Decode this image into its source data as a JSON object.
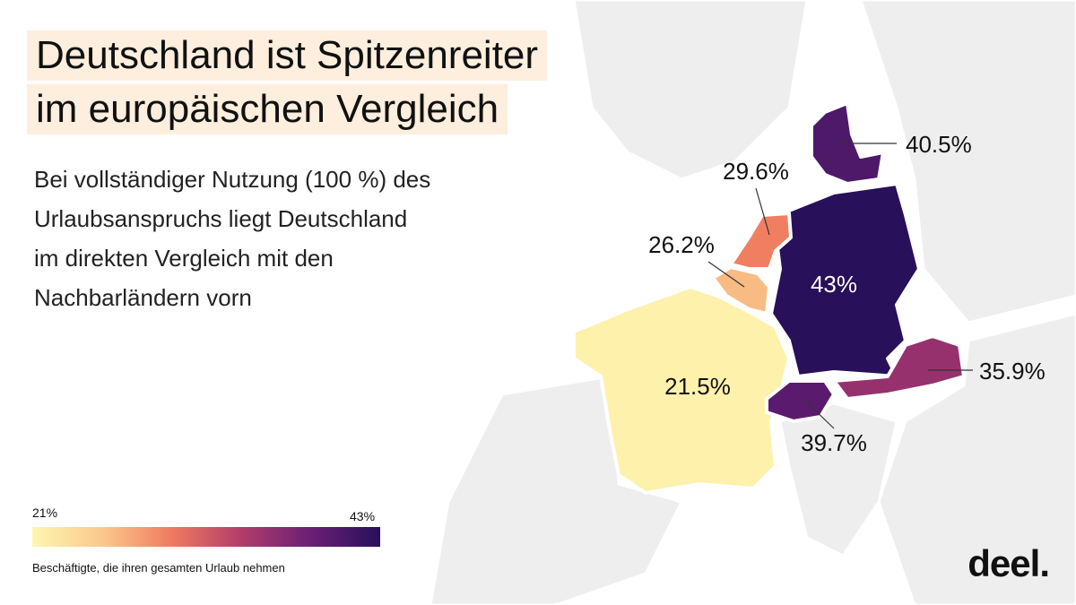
{
  "title": {
    "lines": [
      "Deutschland ist Spitzenreiter",
      "im europäischen Vergleich"
    ]
  },
  "subtitle": {
    "lines": [
      "Bei vollständiger Nutzung (100 %) des",
      "Urlaubsanspruchs liegt Deutschland",
      "im direkten Vergleich mit den",
      "Nachbarländern vorn"
    ]
  },
  "map": {
    "values": [
      43,
      40.5,
      29.6,
      26.2,
      21.5,
      39.7,
      35.9
    ],
    "value_labels": [
      "43%",
      "40.5%",
      "29.6%",
      "26.2%",
      "21.5%",
      "39.7%",
      "35.9%"
    ]
  },
  "legend": {
    "range": [
      {
        "value": 21,
        "label": "21%"
      },
      {
        "value": 43,
        "label": "43%"
      }
    ],
    "caption": "Beschäftigte, die ihren gesamten Urlaub nehmen"
  },
  "logo": "deel."
}
